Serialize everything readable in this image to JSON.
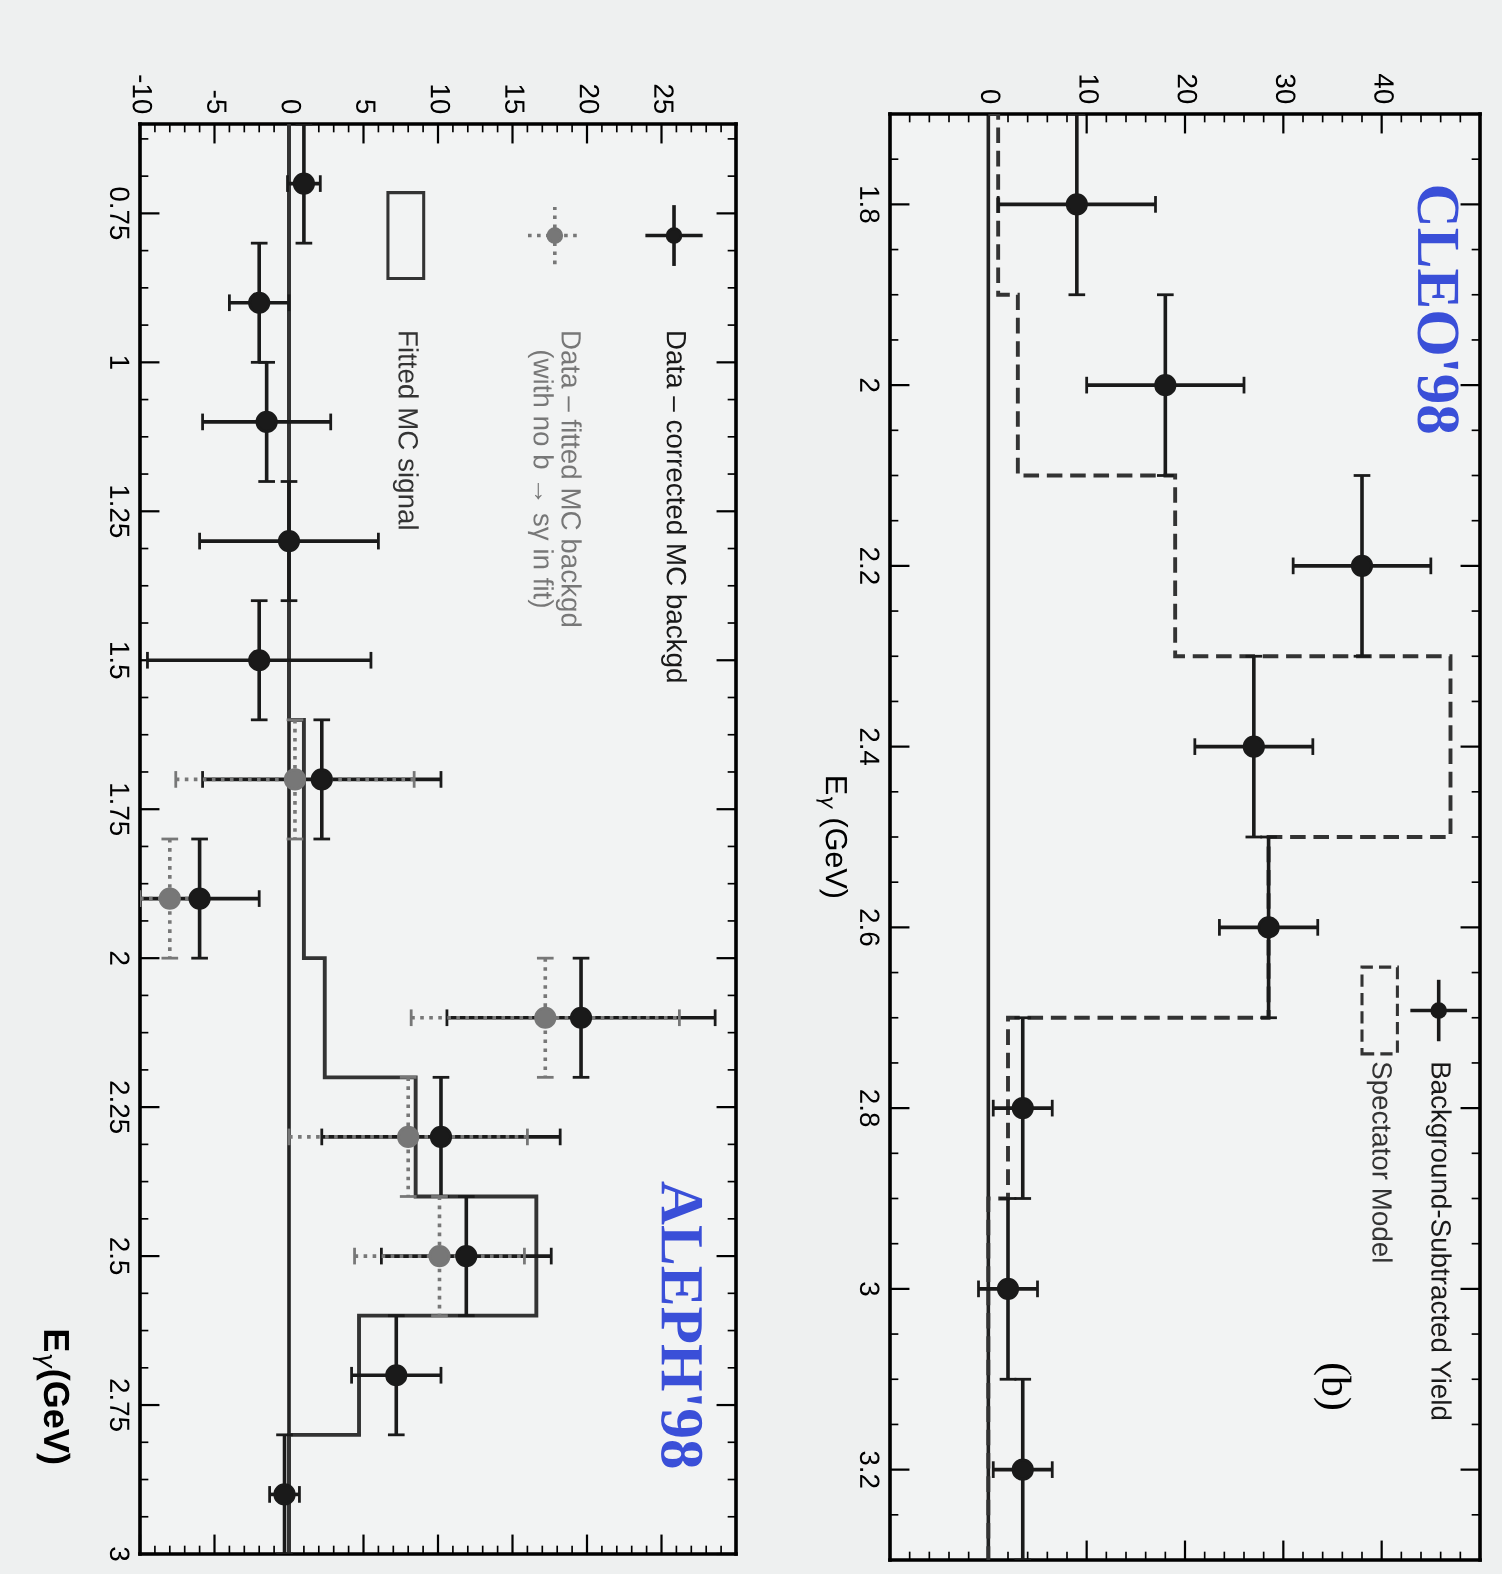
{
  "chart_data": [
    {
      "type": "scatter",
      "title": "CLEO'98",
      "ylabel": "E$_{γ}$ (GeV)",
      "annotations": [
        "(b)"
      ],
      "orientation": "horizontal",
      "xlim": [
        -10,
        50
      ],
      "xticks": [
        0,
        10,
        20,
        30,
        40
      ],
      "ylim": [
        3.3,
        1.7
      ],
      "yticks": [
        1.8,
        2,
        2.2,
        2.4,
        2.6,
        2.8,
        3,
        3.2
      ],
      "legend": "bottom right",
      "ref_lines": [
        {
          "axis": "x",
          "value": 0
        }
      ],
      "series": [
        {
          "name": "Background-Subtracted Yield",
          "color": "#1a1a1a",
          "marker": "circle",
          "x": [
            1.8,
            2.0,
            2.2,
            2.4,
            2.6,
            2.8,
            3.0,
            3.2
          ],
          "values": [
            9,
            18,
            38,
            27,
            28.5,
            3.5,
            2,
            3.5
          ],
          "errors": [
            8,
            8,
            7,
            6,
            5,
            3,
            3,
            3
          ],
          "xerrors": [
            0.1,
            0.1,
            0.1,
            0.1,
            0.1,
            0.1,
            0.1,
            0.1
          ]
        },
        {
          "name": "Spectator Model",
          "type": "histogram",
          "color": "#333333",
          "line_style": "dashed",
          "bins": [
            1.7,
            1.9,
            2.1,
            2.3,
            2.5,
            2.7,
            2.9,
            3.1,
            3.3
          ],
          "values": [
            1,
            3,
            19,
            47,
            28.5,
            2,
            0,
            0
          ]
        }
      ]
    },
    {
      "type": "scatter",
      "title": "ALEPH'98",
      "ylabel": "E$_{γ}$(GeV)",
      "orientation": "horizontal",
      "xlim": [
        -10,
        30
      ],
      "xticks": [
        -10,
        -5,
        0,
        5,
        10,
        15,
        20,
        25
      ],
      "ylim": [
        3.0,
        0.6
      ],
      "yticks": [
        0.75,
        1,
        1.25,
        1.5,
        1.75,
        2,
        2.25,
        2.5,
        2.75,
        3
      ],
      "legend": "top right",
      "ref_lines": [
        {
          "axis": "x",
          "value": 0
        }
      ],
      "series": [
        {
          "name": "Data – corrected MC backgd",
          "color": "#1a1a1a",
          "marker": "circle",
          "x": [
            0.7,
            0.9,
            1.1,
            1.3,
            1.5,
            1.7,
            1.9,
            2.1,
            2.3,
            2.5,
            2.7,
            2.9
          ],
          "values": [
            1,
            -2,
            -1.5,
            0,
            -2,
            2.2,
            -6,
            19.6,
            10.2,
            11.9,
            7.2,
            -0.3
          ],
          "errors": [
            1.1,
            2,
            4.3,
            6,
            7.5,
            8,
            4,
            9,
            8,
            5.7,
            3,
            1
          ],
          "xerrors": [
            0.1,
            0.1,
            0.1,
            0.1,
            0.1,
            0.1,
            0.1,
            0.1,
            0.1,
            0.1,
            0.1,
            0.1
          ]
        },
        {
          "name": "Data – fitted MC backgd\n(with no b → sγ in fit)",
          "color": "#777777",
          "marker": "circle",
          "line_style": "dotted",
          "x": [
            1.7,
            1.9,
            2.1,
            2.3,
            2.5
          ],
          "values": [
            0.4,
            -8,
            17.2,
            8,
            10.1
          ],
          "errors": [
            8,
            2,
            9,
            8,
            5.7
          ],
          "xerrors": [
            0.1,
            0.1,
            0.1,
            0.1,
            0.1
          ]
        },
        {
          "name": "Fitted MC signal",
          "type": "histogram",
          "color": "#333333",
          "line_style": "solid",
          "bins": [
            0.6,
            0.8,
            1.0,
            1.2,
            1.4,
            1.6,
            1.8,
            2.0,
            2.2,
            2.4,
            2.6,
            2.8,
            3.0
          ],
          "values": [
            0,
            0,
            0,
            0,
            0,
            1,
            1,
            2.4,
            8.5,
            16.6,
            4.7,
            0
          ]
        }
      ]
    }
  ]
}
